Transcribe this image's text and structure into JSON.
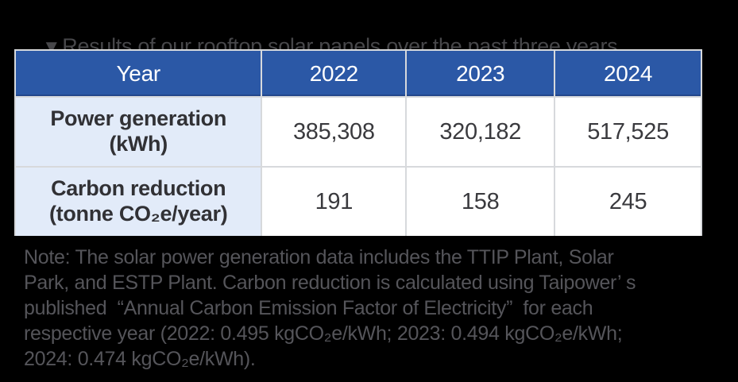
{
  "colors": {
    "page_bg": "#000000",
    "title_text": "#47474A",
    "note_text": "#55555A",
    "header_bg": "#2B58A6",
    "header_text": "#FFFFFF",
    "label_bg": "#E2EBF9",
    "cell_bg": "#FFFFFF",
    "cell_text": "#3A3A3E",
    "grid_line": "#D7D9DC"
  },
  "title": {
    "marker": "▼",
    "text": "Results of our rooftop solar panels over the past three years"
  },
  "table": {
    "columns": [
      "Year",
      "2022",
      "2023",
      "2024"
    ],
    "rows": [
      {
        "label_line1": "Power generation",
        "label_line2": "(kWh)",
        "values": [
          "385,308",
          "320,182",
          "517,525"
        ]
      },
      {
        "label_line1": "Carbon reduction",
        "label_line2": "(tonne CO₂e/year)",
        "values": [
          "191",
          "158",
          "245"
        ]
      }
    ]
  },
  "note": {
    "lines": [
      "Note: The solar power generation data includes the TTIP Plant, Solar",
      "Park, and ESTP Plant. Carbon reduction is calculated using Taipower’ s",
      "published  “Annual Carbon Emission Factor of Electricity”  for each",
      "respective year (2022: 0.495 kgCO₂e/kWh; 2023: 0.494 kgCO₂e/kWh;",
      "2024: 0.474 kgCO₂e/kWh)."
    ]
  }
}
